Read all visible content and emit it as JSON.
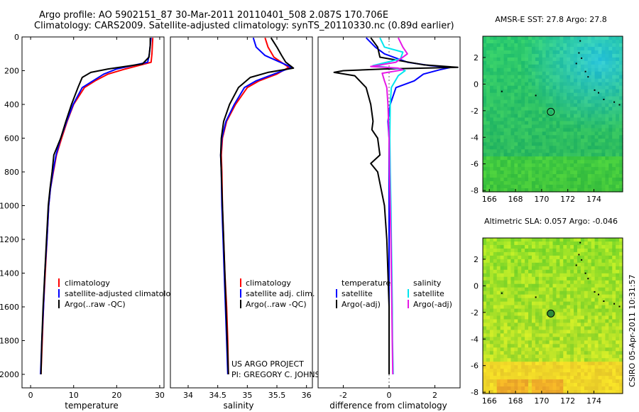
{
  "header": {
    "line1": "Argo profile: AO 5902151_87 30-Mar-2011 20110401_508 2.087S 170.706E",
    "line2": "Climatology: CARS2009. Satellite-adjusted climatology: synTS_20110330.nc (0.89d earlier)"
  },
  "side_stamp": "CSIRO 05-Apr-2011 10:31:57",
  "credit": {
    "line1": "US ARGO PROJECT",
    "line2": "PI: GREGORY C. JOHNSON"
  },
  "colors": {
    "climatology": "#ff0000",
    "satellite": "#0000ff",
    "argo": "#000000",
    "sal_satellite": "#00e5ee",
    "sal_argo": "#e619e6"
  },
  "chart_data": [
    {
      "type": "line",
      "id": "temperature",
      "xlabel": "temperature",
      "ylabel": "",
      "xlim": [
        -2,
        31
      ],
      "ylim": [
        2080,
        0
      ],
      "xticks": [
        0,
        10,
        20,
        30
      ],
      "yticks": [
        0,
        200,
        400,
        600,
        800,
        1000,
        1200,
        1400,
        1600,
        1800,
        2000
      ],
      "legend": [
        "climatology",
        "satellite-adjusted climatolog",
        "Argo(..raw -QC)"
      ],
      "series": [
        {
          "name": "climatology",
          "color": "#ff0000",
          "points": [
            [
              28.4,
              5
            ],
            [
              28.3,
              50
            ],
            [
              28.2,
              100
            ],
            [
              28.0,
              150
            ],
            [
              22,
              190
            ],
            [
              18,
              220
            ],
            [
              15,
              260
            ],
            [
              12.5,
              300
            ],
            [
              10,
              400
            ],
            [
              8.5,
              500
            ],
            [
              7.2,
              600
            ],
            [
              6.0,
              700
            ],
            [
              5.3,
              800
            ],
            [
              4.6,
              900
            ],
            [
              4.2,
              1000
            ],
            [
              3.8,
              1200
            ],
            [
              3.4,
              1400
            ],
            [
              3.0,
              1600
            ],
            [
              2.7,
              1800
            ],
            [
              2.4,
              2000
            ]
          ]
        },
        {
          "name": "satellite",
          "color": "#0000ff",
          "points": [
            [
              28.0,
              5
            ],
            [
              27.8,
              50
            ],
            [
              27.6,
              100
            ],
            [
              27.2,
              150
            ],
            [
              20,
              190
            ],
            [
              17,
              220
            ],
            [
              14.5,
              260
            ],
            [
              12,
              300
            ],
            [
              9.9,
              400
            ],
            [
              8.4,
              500
            ],
            [
              7.0,
              600
            ],
            [
              5.9,
              700
            ],
            [
              5.2,
              800
            ],
            [
              4.6,
              900
            ],
            [
              4.2,
              1000
            ],
            [
              3.8,
              1200
            ],
            [
              3.3,
              1400
            ],
            [
              3.0,
              1600
            ],
            [
              2.6,
              1800
            ],
            [
              2.3,
              2000
            ]
          ]
        },
        {
          "name": "argo",
          "color": "#000000",
          "points": [
            [
              27.8,
              5
            ],
            [
              27.8,
              50
            ],
            [
              27.5,
              120
            ],
            [
              26,
              160
            ],
            [
              18,
              190
            ],
            [
              14,
              210
            ],
            [
              12,
              240
            ],
            [
              11,
              300
            ],
            [
              9.5,
              400
            ],
            [
              8.2,
              500
            ],
            [
              7.0,
              600
            ],
            [
              5.4,
              700
            ],
            [
              5.0,
              800
            ],
            [
              4.5,
              900
            ],
            [
              4.1,
              1000
            ],
            [
              3.7,
              1200
            ],
            [
              3.3,
              1400
            ],
            [
              2.9,
              1600
            ],
            [
              2.6,
              1800
            ],
            [
              2.4,
              2000
            ]
          ]
        }
      ]
    },
    {
      "type": "line",
      "id": "salinity",
      "xlabel": "salinity",
      "xlim": [
        33.7,
        36.1
      ],
      "ylim": [
        2080,
        0
      ],
      "xticks": [
        34,
        34.5,
        35,
        35.5,
        36
      ],
      "xticklabels": [
        "34",
        "34.5",
        "35",
        "35.5",
        "36"
      ],
      "legend": [
        "climatology",
        "satellite adj. clim.",
        "Argo(..raw -QC)"
      ],
      "series": [
        {
          "name": "climatology",
          "color": "#ff0000",
          "points": [
            [
              35.3,
              5
            ],
            [
              35.35,
              60
            ],
            [
              35.45,
              120
            ],
            [
              35.7,
              180
            ],
            [
              35.5,
              220
            ],
            [
              35.2,
              260
            ],
            [
              35.0,
              300
            ],
            [
              34.8,
              400
            ],
            [
              34.65,
              500
            ],
            [
              34.58,
              600
            ],
            [
              34.56,
              700
            ],
            [
              34.57,
              800
            ],
            [
              34.58,
              1000
            ],
            [
              34.6,
              1200
            ],
            [
              34.62,
              1400
            ],
            [
              34.65,
              1600
            ],
            [
              34.67,
              1800
            ],
            [
              34.68,
              2000
            ]
          ]
        },
        {
          "name": "satellite",
          "color": "#0000ff",
          "points": [
            [
              35.1,
              5
            ],
            [
              35.15,
              60
            ],
            [
              35.3,
              110
            ],
            [
              35.75,
              180
            ],
            [
              35.45,
              220
            ],
            [
              35.15,
              260
            ],
            [
              34.95,
              300
            ],
            [
              34.78,
              400
            ],
            [
              34.64,
              500
            ],
            [
              34.57,
              600
            ],
            [
              34.55,
              700
            ],
            [
              34.56,
              800
            ],
            [
              34.57,
              1000
            ],
            [
              34.59,
              1200
            ],
            [
              34.61,
              1400
            ],
            [
              34.63,
              1600
            ],
            [
              34.65,
              1800
            ],
            [
              34.67,
              2000
            ]
          ]
        },
        {
          "name": "argo",
          "color": "#000000",
          "points": [
            [
              35.4,
              5
            ],
            [
              35.5,
              60
            ],
            [
              35.58,
              110
            ],
            [
              35.65,
              150
            ],
            [
              35.78,
              185
            ],
            [
              35.35,
              210
            ],
            [
              35.05,
              240
            ],
            [
              34.85,
              300
            ],
            [
              34.7,
              400
            ],
            [
              34.6,
              500
            ],
            [
              34.56,
              600
            ],
            [
              34.55,
              700
            ],
            [
              34.56,
              800
            ],
            [
              34.58,
              1000
            ],
            [
              34.6,
              1200
            ],
            [
              34.62,
              1400
            ],
            [
              34.64,
              1600
            ],
            [
              34.66,
              1800
            ],
            [
              34.68,
              2000
            ]
          ]
        }
      ]
    },
    {
      "type": "line",
      "id": "difference",
      "xlabel": "difference from climatology",
      "xlim": [
        -3.1,
        3.1
      ],
      "ylim": [
        2080,
        0
      ],
      "xticks": [
        -2,
        0,
        2
      ],
      "legend_left_title": "temperature",
      "legend_right_title": "salinity",
      "legend": [
        "satellite",
        "Argo(-adj)",
        "satellite",
        "Argo(-adj)"
      ],
      "series": [
        {
          "name": "temperature satellite",
          "color": "#0000ff",
          "points": [
            [
              -1.0,
              5
            ],
            [
              -0.6,
              60
            ],
            [
              -0.2,
              100
            ],
            [
              0.8,
              150
            ],
            [
              1.8,
              170
            ],
            [
              2.7,
              180
            ],
            [
              2.2,
              195
            ],
            [
              1.5,
              220
            ],
            [
              1.1,
              260
            ],
            [
              0.3,
              300
            ],
            [
              0.05,
              400
            ],
            [
              -0.05,
              500
            ],
            [
              0,
              600
            ],
            [
              0,
              800
            ],
            [
              0,
              1000
            ],
            [
              0,
              1400
            ],
            [
              0,
              1800
            ],
            [
              0,
              2000
            ]
          ]
        },
        {
          "name": "temperature argo",
          "color": "#000000",
          "points": [
            [
              -0.8,
              5
            ],
            [
              -0.5,
              60
            ],
            [
              -0.4,
              120
            ],
            [
              1.5,
              165
            ],
            [
              3.0,
              180
            ],
            [
              -0.2,
              190
            ],
            [
              -2.0,
              200
            ],
            [
              -2.4,
              210
            ],
            [
              -1.5,
              230
            ],
            [
              -1.0,
              300
            ],
            [
              -0.8,
              400
            ],
            [
              -0.7,
              500
            ],
            [
              -0.75,
              550
            ],
            [
              -0.5,
              600
            ],
            [
              -0.4,
              700
            ],
            [
              -0.8,
              750
            ],
            [
              -0.5,
              800
            ],
            [
              -0.35,
              900
            ],
            [
              -0.2,
              1000
            ],
            [
              -0.1,
              1200
            ],
            [
              -0.05,
              1400
            ],
            [
              0,
              1600
            ],
            [
              0,
              1800
            ],
            [
              0,
              2000
            ]
          ]
        },
        {
          "name": "salinity satellite",
          "color": "#00e5ee",
          "points": [
            [
              -0.4,
              5
            ],
            [
              -0.2,
              60
            ],
            [
              0.6,
              90
            ],
            [
              0.5,
              130
            ],
            [
              -0.7,
              170
            ],
            [
              0.5,
              190
            ],
            [
              0.7,
              200
            ],
            [
              0.4,
              230
            ],
            [
              0.1,
              300
            ],
            [
              0.05,
              400
            ],
            [
              0.03,
              600
            ],
            [
              0.05,
              800
            ],
            [
              0.08,
              1000
            ],
            [
              0.1,
              1200
            ],
            [
              0.12,
              1400
            ],
            [
              0.14,
              1600
            ],
            [
              0.15,
              1800
            ],
            [
              0.18,
              2000
            ]
          ]
        },
        {
          "name": "salinity argo",
          "color": "#e619e6",
          "points": [
            [
              0.4,
              5
            ],
            [
              0.6,
              60
            ],
            [
              0.8,
              100
            ],
            [
              0.3,
              150
            ],
            [
              -0.8,
              175
            ],
            [
              0.4,
              185
            ],
            [
              0.6,
              195
            ],
            [
              -0.3,
              215
            ],
            [
              -0.2,
              260
            ],
            [
              -0.1,
              300
            ],
            [
              -0.05,
              400
            ],
            [
              0,
              600
            ],
            [
              0.02,
              800
            ],
            [
              0.05,
              1000
            ],
            [
              0.08,
              1200
            ],
            [
              0.1,
              1400
            ],
            [
              0.12,
              1600
            ],
            [
              0.14,
              1800
            ],
            [
              0.16,
              2000
            ]
          ]
        }
      ]
    },
    {
      "type": "heatmap",
      "id": "sst_map",
      "title": "AMSR-E SST: 27.8 Argo: 27.8",
      "xlim": [
        165.5,
        176.2
      ],
      "ylim": [
        -8.1,
        3.6
      ],
      "xticks": [
        166,
        168,
        170,
        172,
        174
      ],
      "yticks": [
        2,
        0,
        -2,
        -4,
        -6,
        -8
      ],
      "argo_position": {
        "lon": 170.706,
        "lat": -2.087
      }
    },
    {
      "type": "heatmap",
      "id": "sla_map",
      "title": "Altimetric SLA: 0.057 Argo: -0.046",
      "xlim": [
        165.5,
        176.2
      ],
      "ylim": [
        -8.1,
        3.6
      ],
      "xticks": [
        166,
        168,
        170,
        172,
        174
      ],
      "yticks": [
        2,
        0,
        -2,
        -4,
        -6,
        -8
      ],
      "argo_position": {
        "lon": 170.706,
        "lat": -2.087
      }
    }
  ]
}
